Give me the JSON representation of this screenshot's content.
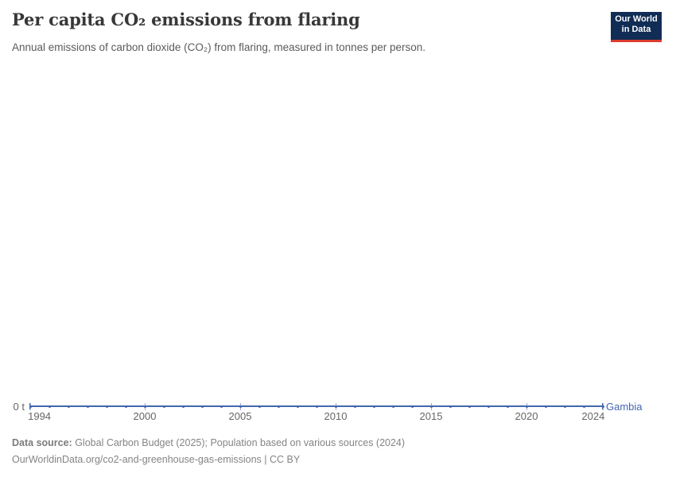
{
  "header": {
    "title": "Per capita CO₂ emissions from flaring",
    "subtitle": "Annual emissions of carbon dioxide (CO₂) from flaring, measured in tonnes per person."
  },
  "logo": {
    "line1": "Our World",
    "line2": "in Data",
    "bg_color": "#112d55",
    "accent_color": "#dc3b2e"
  },
  "chart_data": {
    "type": "line",
    "title": "Per capita CO₂ emissions from flaring",
    "xlabel": "",
    "ylabel": "",
    "x": [
      1994,
      1995,
      1996,
      1997,
      1998,
      1999,
      2000,
      2001,
      2002,
      2003,
      2004,
      2005,
      2006,
      2007,
      2008,
      2009,
      2010,
      2011,
      2012,
      2013,
      2014,
      2015,
      2016,
      2017,
      2018,
      2019,
      2020,
      2021,
      2022,
      2023,
      2024
    ],
    "x_ticks": [
      1994,
      2000,
      2005,
      2010,
      2015,
      2020,
      2024
    ],
    "xlim": [
      1994,
      2024
    ],
    "ylim": [
      0,
      0
    ],
    "grid": false,
    "legend_position": "end-of-line",
    "y_axis": {
      "zero_label": "0 t"
    },
    "series": [
      {
        "name": "Gambia",
        "color": "#4266af",
        "values": [
          0,
          0,
          0,
          0,
          0,
          0,
          0,
          0,
          0,
          0,
          0,
          0,
          0,
          0,
          0,
          0,
          0,
          0,
          0,
          0,
          0,
          0,
          0,
          0,
          0,
          0,
          0,
          0,
          0,
          0,
          0
        ]
      }
    ]
  },
  "footer": {
    "sources_label": "Data source:",
    "sources_text": " Global Carbon Budget (2025); Population based on various sources (2024)",
    "attribution": "OurWorldinData.org/co2-and-greenhouse-gas-emissions | CC BY"
  }
}
